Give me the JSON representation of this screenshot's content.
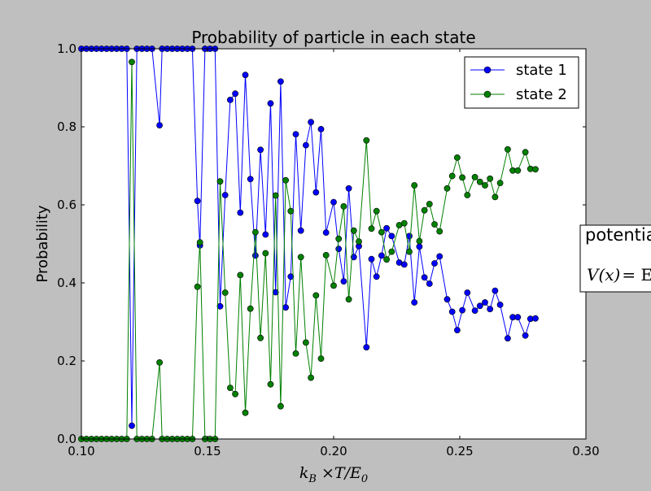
{
  "chart_data": {
    "type": "line",
    "title": "Probability of particle in each state",
    "xlabel": "k_B ×T/E_0",
    "xlabel_parts": {
      "k": "k",
      "ksub": "B",
      "mid": " ×T/E",
      "esub": "0"
    },
    "ylabel": "Probability",
    "xlim": [
      0.1,
      0.3
    ],
    "ylim": [
      0.0,
      1.0
    ],
    "xticks": [
      0.1,
      0.15,
      0.2,
      0.25,
      0.3
    ],
    "xtick_labels": [
      "0.10",
      "0.15",
      "0.20",
      "0.25",
      "0.30"
    ],
    "yticks": [
      0.0,
      0.2,
      0.4,
      0.6,
      0.8,
      1.0
    ],
    "ytick_labels": [
      "0.0",
      "0.2",
      "0.4",
      "0.6",
      "0.8",
      "1.0"
    ],
    "grid": false,
    "legend_position": "top-right",
    "series": [
      {
        "name": "state 1",
        "color": "#0000ff",
        "marker": "circle",
        "points": [
          [
            0.1,
            1
          ],
          [
            0.102,
            1
          ],
          [
            0.104,
            1
          ],
          [
            0.106,
            1
          ],
          [
            0.108,
            1
          ],
          [
            0.11,
            1
          ],
          [
            0.112,
            1
          ],
          [
            0.114,
            1
          ],
          [
            0.116,
            1
          ],
          [
            0.118,
            1
          ],
          [
            0.12,
            0.034
          ],
          [
            0.122,
            1
          ],
          [
            0.124,
            1
          ],
          [
            0.126,
            1
          ],
          [
            0.128,
            1
          ],
          [
            0.131,
            0.804
          ],
          [
            0.132,
            1
          ],
          [
            0.134,
            1
          ],
          [
            0.136,
            1
          ],
          [
            0.138,
            1
          ],
          [
            0.14,
            1
          ],
          [
            0.142,
            1
          ],
          [
            0.144,
            1
          ],
          [
            0.146,
            0.61
          ],
          [
            0.147,
            0.496
          ],
          [
            0.149,
            1
          ],
          [
            0.151,
            1
          ],
          [
            0.153,
            1
          ],
          [
            0.155,
            0.34
          ],
          [
            0.157,
            0.625
          ],
          [
            0.159,
            0.869
          ],
          [
            0.161,
            0.885
          ],
          [
            0.163,
            0.58
          ],
          [
            0.165,
            0.933
          ],
          [
            0.167,
            0.666
          ],
          [
            0.169,
            0.47
          ],
          [
            0.171,
            0.741
          ],
          [
            0.173,
            0.524
          ],
          [
            0.175,
            0.86
          ],
          [
            0.177,
            0.376
          ],
          [
            0.179,
            0.916
          ],
          [
            0.181,
            0.337
          ],
          [
            0.183,
            0.416
          ],
          [
            0.185,
            0.781
          ],
          [
            0.187,
            0.534
          ],
          [
            0.189,
            0.753
          ],
          [
            0.191,
            0.812
          ],
          [
            0.193,
            0.632
          ],
          [
            0.195,
            0.794
          ],
          [
            0.197,
            0.529
          ],
          [
            0.2,
            0.607
          ],
          [
            0.202,
            0.487
          ],
          [
            0.204,
            0.404
          ],
          [
            0.206,
            0.642
          ],
          [
            0.208,
            0.466
          ],
          [
            0.21,
            0.494
          ],
          [
            0.213,
            0.235
          ],
          [
            0.215,
            0.461
          ],
          [
            0.217,
            0.416
          ],
          [
            0.219,
            0.47
          ],
          [
            0.221,
            0.54
          ],
          [
            0.223,
            0.52
          ],
          [
            0.226,
            0.452
          ],
          [
            0.228,
            0.447
          ],
          [
            0.23,
            0.52
          ],
          [
            0.232,
            0.35
          ],
          [
            0.234,
            0.493
          ],
          [
            0.236,
            0.414
          ],
          [
            0.238,
            0.398
          ],
          [
            0.24,
            0.45
          ],
          [
            0.242,
            0.468
          ],
          [
            0.245,
            0.358
          ],
          [
            0.247,
            0.326
          ],
          [
            0.249,
            0.279
          ],
          [
            0.251,
            0.33
          ],
          [
            0.253,
            0.375
          ],
          [
            0.256,
            0.329
          ],
          [
            0.258,
            0.341
          ],
          [
            0.26,
            0.35
          ],
          [
            0.262,
            0.333
          ],
          [
            0.264,
            0.38
          ],
          [
            0.266,
            0.344
          ],
          [
            0.269,
            0.258
          ],
          [
            0.271,
            0.312
          ],
          [
            0.273,
            0.312
          ],
          [
            0.276,
            0.265
          ],
          [
            0.278,
            0.308
          ],
          [
            0.28,
            0.309
          ]
        ]
      },
      {
        "name": "state 2",
        "color": "#008000",
        "marker": "circle",
        "points": [
          [
            0.1,
            0
          ],
          [
            0.102,
            0
          ],
          [
            0.104,
            0
          ],
          [
            0.106,
            0
          ],
          [
            0.108,
            0
          ],
          [
            0.11,
            0
          ],
          [
            0.112,
            0
          ],
          [
            0.114,
            0
          ],
          [
            0.116,
            0
          ],
          [
            0.118,
            0
          ],
          [
            0.12,
            0.966
          ],
          [
            0.122,
            0
          ],
          [
            0.124,
            0
          ],
          [
            0.126,
            0
          ],
          [
            0.128,
            0
          ],
          [
            0.131,
            0.196
          ],
          [
            0.132,
            0
          ],
          [
            0.134,
            0
          ],
          [
            0.136,
            0
          ],
          [
            0.138,
            0
          ],
          [
            0.14,
            0
          ],
          [
            0.142,
            0
          ],
          [
            0.144,
            0
          ],
          [
            0.146,
            0.39
          ],
          [
            0.147,
            0.504
          ],
          [
            0.149,
            0
          ],
          [
            0.151,
            0
          ],
          [
            0.153,
            0
          ],
          [
            0.155,
            0.66
          ],
          [
            0.157,
            0.375
          ],
          [
            0.159,
            0.131
          ],
          [
            0.161,
            0.115
          ],
          [
            0.163,
            0.42
          ],
          [
            0.165,
            0.067
          ],
          [
            0.167,
            0.334
          ],
          [
            0.169,
            0.53
          ],
          [
            0.171,
            0.259
          ],
          [
            0.173,
            0.476
          ],
          [
            0.175,
            0.14
          ],
          [
            0.177,
            0.624
          ],
          [
            0.179,
            0.084
          ],
          [
            0.181,
            0.663
          ],
          [
            0.183,
            0.584
          ],
          [
            0.185,
            0.219
          ],
          [
            0.187,
            0.466
          ],
          [
            0.189,
            0.247
          ],
          [
            0.191,
            0.157
          ],
          [
            0.193,
            0.368
          ],
          [
            0.195,
            0.206
          ],
          [
            0.197,
            0.471
          ],
          [
            0.2,
            0.393
          ],
          [
            0.202,
            0.513
          ],
          [
            0.204,
            0.596
          ],
          [
            0.206,
            0.358
          ],
          [
            0.208,
            0.534
          ],
          [
            0.21,
            0.506
          ],
          [
            0.213,
            0.765
          ],
          [
            0.215,
            0.539
          ],
          [
            0.217,
            0.584
          ],
          [
            0.219,
            0.53
          ],
          [
            0.221,
            0.46
          ],
          [
            0.223,
            0.48
          ],
          [
            0.226,
            0.548
          ],
          [
            0.228,
            0.553
          ],
          [
            0.23,
            0.48
          ],
          [
            0.232,
            0.65
          ],
          [
            0.234,
            0.507
          ],
          [
            0.236,
            0.586
          ],
          [
            0.238,
            0.602
          ],
          [
            0.24,
            0.55
          ],
          [
            0.242,
            0.532
          ],
          [
            0.245,
            0.642
          ],
          [
            0.247,
            0.674
          ],
          [
            0.249,
            0.721
          ],
          [
            0.251,
            0.67
          ],
          [
            0.253,
            0.625
          ],
          [
            0.256,
            0.671
          ],
          [
            0.258,
            0.659
          ],
          [
            0.26,
            0.65
          ],
          [
            0.262,
            0.667
          ],
          [
            0.264,
            0.62
          ],
          [
            0.266,
            0.656
          ],
          [
            0.269,
            0.742
          ],
          [
            0.271,
            0.688
          ],
          [
            0.273,
            0.688
          ],
          [
            0.276,
            0.735
          ],
          [
            0.278,
            0.692
          ],
          [
            0.28,
            0.691
          ]
        ]
      }
    ]
  },
  "annotation": {
    "title": "potentia",
    "eq_lhs": "V(x)",
    "eq_rest": "= E"
  }
}
